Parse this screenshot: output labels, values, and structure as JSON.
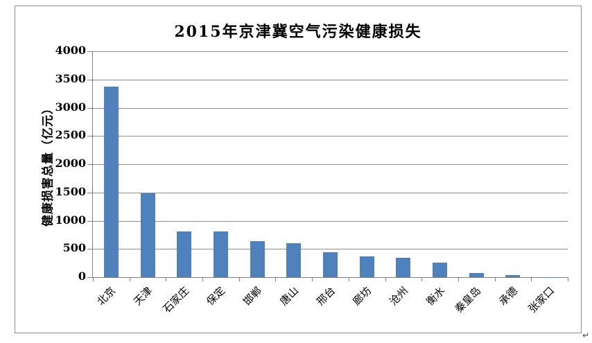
{
  "document": {
    "paragraph_mark": "↵"
  },
  "chart_data": {
    "type": "bar",
    "title": "2015年京津冀空气污染健康损失",
    "ylabel": "健康损害总量（亿元）",
    "xlabel": "",
    "categories": [
      "北京",
      "天津",
      "石家庄",
      "保定",
      "邯郸",
      "唐山",
      "邢台",
      "廊坊",
      "沧州",
      "衡水",
      "秦皇岛",
      "承德",
      "张家口"
    ],
    "values": [
      3380,
      1490,
      815,
      805,
      635,
      600,
      440,
      365,
      345,
      255,
      80,
      40,
      5
    ],
    "ylim": [
      0,
      4000
    ],
    "ytick_interval": 500,
    "yticks": [
      "0",
      "500",
      "1000",
      "1500",
      "2000",
      "2500",
      "3000",
      "3500",
      "4000"
    ],
    "grid": true,
    "legend": null,
    "bar_color": "#4F81BD",
    "gridline_color": "#8E8E8E",
    "axis_color": "#7F7F7F",
    "border_color": "#8C8C8C",
    "text_color": "#000000"
  }
}
